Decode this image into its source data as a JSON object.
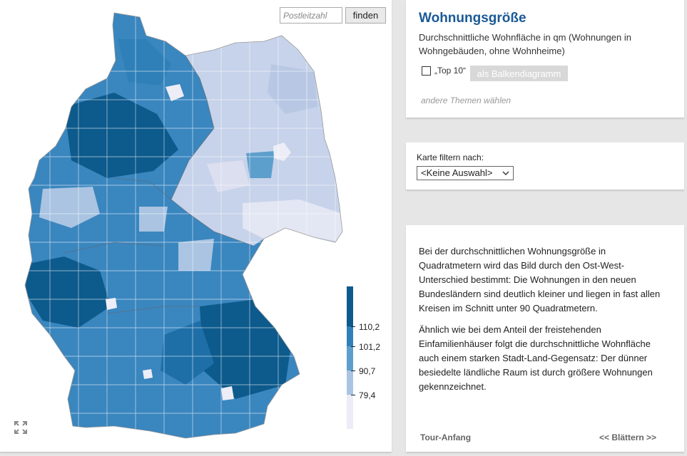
{
  "search": {
    "placeholder": "Postleitzahl",
    "button": "finden"
  },
  "title": "Wohnungsgröße",
  "subtitle": "Durchschnittliche Wohnfläche in qm (Wohnungen in Wohngebäuden, ohne Wohnheime)",
  "top10_label": "„Top 10“",
  "bar_chart_button": "als Balkendiagramm",
  "other_topics": "andere Themen wählen",
  "filter": {
    "label": "Karte filtern nach:",
    "selected": "<Keine Auswahl>"
  },
  "text": {
    "paragraph1": "Bei der durchschnittlichen Wohnungsgröße in Quadratmetern wird das Bild durch den Ost-West-Unterschied bestimmt: Die Wohnungen in den neuen Bundesländern sind deutlich kleiner und liegen in fast allen Kreisen im Schnitt unter 90 Quadratmetern.",
    "paragraph2": "Ähnlich wie bei dem Anteil der freistehenden Einfamilienhäuser folgt die durchschnittliche Wohnfläche auch einem starken Stadt-Land-Gegensatz: Der dünner besiedelte ländliche Raum ist durch größere Wohnungen gekennzeichnet."
  },
  "nav": {
    "tour_start": "Tour-Anfang",
    "browse": "<< Blättern >>"
  },
  "legend": {
    "thresholds": [
      "110,2",
      "101,2",
      "90,7",
      "79,4"
    ],
    "colors": [
      "#0d5a8c",
      "#2f80b8",
      "#5d9fcc",
      "#aac4e2",
      "#ecedf6"
    ]
  },
  "colors": {
    "accent": "#1a5a96"
  },
  "icons": {
    "expand": "expand-icon",
    "select": "chevron-down-icon"
  }
}
